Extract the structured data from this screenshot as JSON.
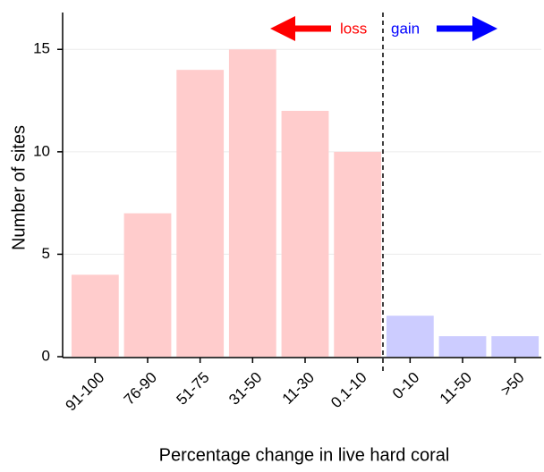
{
  "chart_data": {
    "type": "bar",
    "xlabel": "Percentage change in live hard coral",
    "ylabel": "Number of sites",
    "categories": [
      "91-100",
      "76-90",
      "51-75",
      "31-50",
      "11-30",
      "0.1-10",
      "0-10",
      "11-50",
      ">50"
    ],
    "values": [
      4,
      7,
      14,
      15,
      12,
      10,
      2,
      1,
      1
    ],
    "colors": [
      "#ffcccc",
      "#ffcccc",
      "#ffcccc",
      "#ffcccc",
      "#ffcccc",
      "#ffcccc",
      "#ccccff",
      "#ccccff",
      "#ccccff"
    ],
    "ylim": [
      0,
      16.8
    ],
    "yticks": [
      0,
      5,
      10,
      15
    ],
    "grid": true,
    "annotations": {
      "loss": "loss",
      "gain": "gain"
    }
  }
}
